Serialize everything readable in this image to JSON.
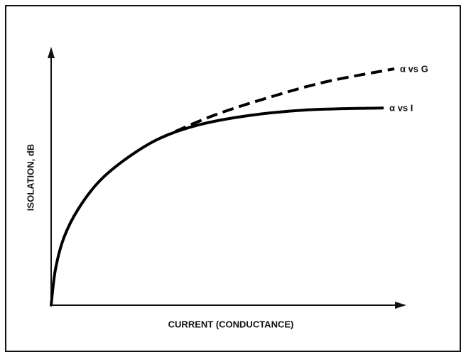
{
  "chart_data": {
    "type": "line",
    "xlabel": "CURRENT (CONDUCTANCE)",
    "ylabel": "ISOLATION, dB",
    "xlim": [
      0,
      100
    ],
    "ylim": [
      0,
      100
    ],
    "series": [
      {
        "name": "α vs I",
        "color": "#000000",
        "dashed": false,
        "x": [
          0,
          1.2,
          3.6,
          7.6,
          13.7,
          21.7,
          30.7,
          41.8,
          55.8,
          71.9,
          94
        ],
        "values": [
          0,
          13.9,
          26.4,
          37.5,
          48.6,
          57.8,
          65.3,
          70.6,
          74.2,
          76.4,
          77.2
        ]
      },
      {
        "name": "α vs G",
        "color": "#000000",
        "dashed": true,
        "x": [
          30.7,
          45.8,
          61.8,
          77.9,
          97
        ],
        "values": [
          65.3,
          74.2,
          81.4,
          87.5,
          92.5
        ]
      }
    ]
  }
}
